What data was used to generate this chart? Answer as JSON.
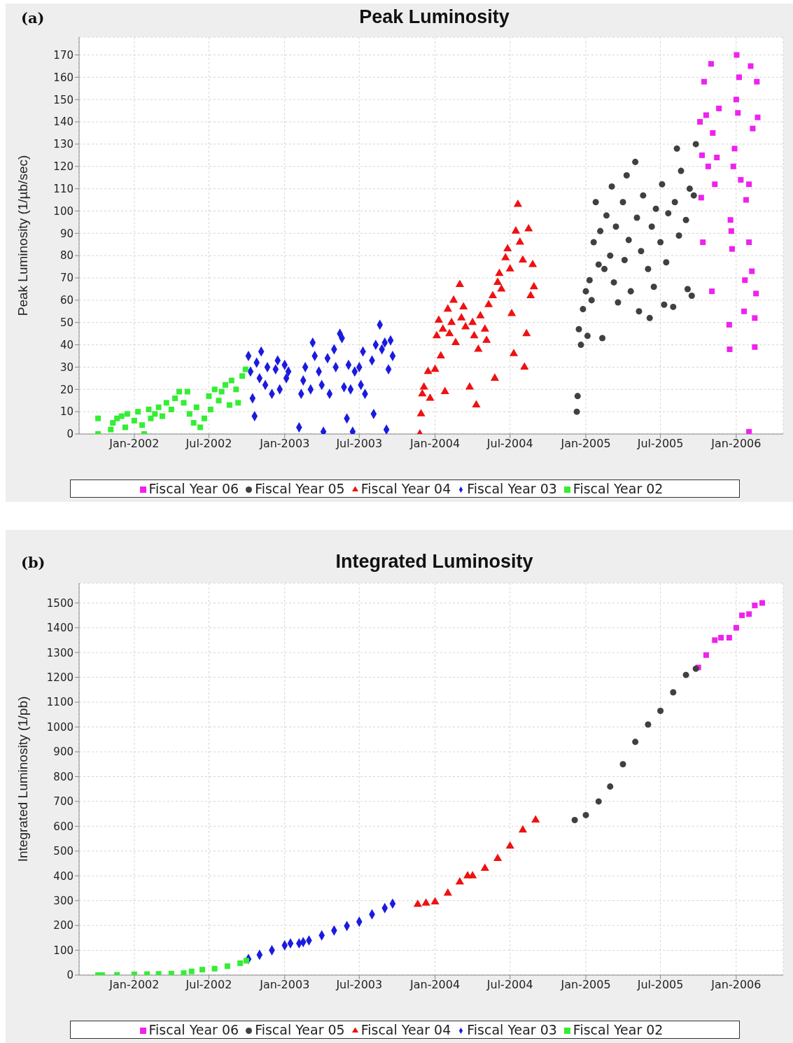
{
  "chart_data": [
    {
      "type": "scatter",
      "title": "Peak Luminosity",
      "ylabel": "Peak Luminosity (1/µb/sec)",
      "annotations": [
        "(a)"
      ],
      "xlim": [
        "2001-08-20",
        "2006-04-25"
      ],
      "ylim": [
        0,
        178
      ],
      "xticks": [
        {
          "value": "2002-01-01",
          "label": "Jan-2002"
        },
        {
          "value": "2002-07-01",
          "label": "Jul-2002"
        },
        {
          "value": "2003-01-01",
          "label": "Jan-2003"
        },
        {
          "value": "2003-07-01",
          "label": "Jul-2003"
        },
        {
          "value": "2004-01-01",
          "label": "Jan-2004"
        },
        {
          "value": "2004-07-01",
          "label": "Jul-2004"
        },
        {
          "value": "2005-01-01",
          "label": "Jan-2005"
        },
        {
          "value": "2005-07-01",
          "label": "Jul-2005"
        },
        {
          "value": "2006-01-01",
          "label": "Jan-2006"
        }
      ],
      "yticks": [
        0,
        10,
        20,
        30,
        40,
        50,
        60,
        70,
        80,
        90,
        100,
        110,
        120,
        130,
        140,
        150,
        160,
        170
      ],
      "grid": true,
      "legend": "bottom",
      "series": [
        {
          "name": "Fiscal Year 06",
          "color": "#ee22ee",
          "marker": "square",
          "x": [
            "2005-10-05",
            "2005-10-08",
            "2005-10-10",
            "2005-10-12",
            "2005-10-15",
            "2005-10-20",
            "2005-10-25",
            "2005-11-01",
            "2005-11-03",
            "2005-11-05",
            "2005-11-10",
            "2005-11-15",
            "2005-11-20",
            "2005-12-15",
            "2005-12-16",
            "2005-12-18",
            "2005-12-20",
            "2005-12-22",
            "2005-12-25",
            "2005-12-28",
            "2006-01-01",
            "2006-01-02",
            "2006-01-05",
            "2006-01-08",
            "2006-01-12",
            "2006-02-01",
            "2006-01-20",
            "2006-01-22",
            "2006-01-25",
            "2006-02-01",
            "2006-02-01",
            "2006-02-05",
            "2006-02-08",
            "2006-02-10",
            "2006-02-15",
            "2006-02-15",
            "2006-02-18",
            "2006-02-20",
            "2006-02-22"
          ],
          "values": [
            140,
            106,
            125,
            86,
            158,
            143,
            120,
            166,
            64,
            135,
            112,
            124,
            146,
            49,
            38,
            96,
            91,
            83,
            120,
            128,
            150,
            170,
            144,
            160,
            114,
            1,
            55,
            69,
            105,
            86,
            112,
            165,
            73,
            137,
            39,
            52,
            63,
            158,
            142
          ]
        },
        {
          "name": "Fiscal Year 05",
          "color": "#404040",
          "marker": "circle",
          "x": [
            "2004-12-10",
            "2004-12-12",
            "2004-12-15",
            "2004-12-20",
            "2004-12-25",
            "2005-01-01",
            "2005-01-05",
            "2005-01-10",
            "2005-01-15",
            "2005-01-20",
            "2005-01-25",
            "2005-02-01",
            "2005-02-05",
            "2005-02-10",
            "2005-02-15",
            "2005-02-20",
            "2005-03-01",
            "2005-03-05",
            "2005-03-10",
            "2005-03-15",
            "2005-03-20",
            "2005-04-01",
            "2005-04-05",
            "2005-04-10",
            "2005-04-15",
            "2005-04-20",
            "2005-05-01",
            "2005-05-05",
            "2005-05-10",
            "2005-05-15",
            "2005-05-20",
            "2005-06-01",
            "2005-06-05",
            "2005-06-10",
            "2005-06-15",
            "2005-06-20",
            "2005-07-01",
            "2005-07-05",
            "2005-07-10",
            "2005-07-15",
            "2005-07-20",
            "2005-08-01",
            "2005-08-05",
            "2005-08-10",
            "2005-08-15",
            "2005-08-20",
            "2005-09-01",
            "2005-09-05",
            "2005-09-10",
            "2005-09-15",
            "2005-09-20",
            "2005-09-25"
          ],
          "values": [
            10,
            17,
            47,
            40,
            56,
            64,
            44,
            69,
            60,
            86,
            104,
            76,
            91,
            43,
            74,
            98,
            80,
            111,
            68,
            93,
            59,
            104,
            78,
            116,
            87,
            64,
            122,
            97,
            55,
            82,
            107,
            74,
            52,
            93,
            66,
            101,
            86,
            112,
            58,
            77,
            99,
            57,
            104,
            128,
            89,
            118,
            96,
            65,
            110,
            62,
            107,
            130
          ]
        },
        {
          "name": "Fiscal Year 04",
          "color": "#ee1111",
          "marker": "triangle",
          "x": [
            "2003-11-25",
            "2003-11-28",
            "2003-12-01",
            "2003-12-05",
            "2003-12-15",
            "2003-12-20",
            "2004-01-01",
            "2004-01-05",
            "2004-01-10",
            "2004-01-15",
            "2004-01-20",
            "2004-01-25",
            "2004-02-01",
            "2004-02-05",
            "2004-02-10",
            "2004-02-15",
            "2004-02-20",
            "2004-03-01",
            "2004-03-05",
            "2004-03-10",
            "2004-03-15",
            "2004-03-25",
            "2004-04-01",
            "2004-04-05",
            "2004-04-10",
            "2004-04-15",
            "2004-04-20",
            "2004-05-01",
            "2004-05-05",
            "2004-05-10",
            "2004-05-20",
            "2004-05-25",
            "2004-06-01",
            "2004-06-05",
            "2004-06-10",
            "2004-06-20",
            "2004-06-25",
            "2004-07-01",
            "2004-07-05",
            "2004-07-10",
            "2004-07-15",
            "2004-07-20",
            "2004-07-25",
            "2004-08-01",
            "2004-08-05",
            "2004-08-10",
            "2004-08-15",
            "2004-08-20",
            "2004-08-25",
            "2004-08-28"
          ],
          "values": [
            0,
            9,
            18,
            21,
            28,
            16,
            29,
            44,
            51,
            35,
            47,
            19,
            56,
            45,
            50,
            60,
            41,
            67,
            52,
            57,
            48,
            21,
            50,
            44,
            13,
            38,
            53,
            47,
            42,
            58,
            62,
            25,
            68,
            72,
            65,
            79,
            83,
            74,
            54,
            36,
            91,
            103,
            86,
            78,
            30,
            45,
            92,
            62,
            76,
            66
          ]
        },
        {
          "name": "Fiscal Year 03",
          "color": "#1a1ae0",
          "marker": "diamond",
          "x": [
            "2002-10-05",
            "2002-10-10",
            "2002-10-15",
            "2002-10-20",
            "2002-10-25",
            "2002-11-01",
            "2002-11-05",
            "2002-11-15",
            "2002-11-20",
            "2002-12-01",
            "2002-12-10",
            "2002-12-15",
            "2002-12-20",
            "2003-01-01",
            "2003-01-05",
            "2003-01-10",
            "2003-02-05",
            "2003-02-10",
            "2003-02-15",
            "2003-02-20",
            "2003-03-05",
            "2003-03-10",
            "2003-03-15",
            "2003-03-25",
            "2003-04-01",
            "2003-04-05",
            "2003-04-15",
            "2003-04-20",
            "2003-05-01",
            "2003-05-05",
            "2003-05-15",
            "2003-05-20",
            "2003-05-25",
            "2003-06-01",
            "2003-06-05",
            "2003-06-10",
            "2003-06-15",
            "2003-06-20",
            "2003-07-01",
            "2003-07-05",
            "2003-07-10",
            "2003-07-15",
            "2003-08-01",
            "2003-08-05",
            "2003-08-10",
            "2003-08-20",
            "2003-08-25",
            "2003-09-01",
            "2003-09-05",
            "2003-09-10",
            "2003-09-15",
            "2003-09-20"
          ],
          "values": [
            35,
            28,
            16,
            8,
            32,
            25,
            37,
            22,
            30,
            18,
            29,
            33,
            20,
            31,
            25,
            28,
            3,
            18,
            24,
            30,
            20,
            41,
            35,
            28,
            22,
            1,
            34,
            18,
            38,
            30,
            45,
            43,
            21,
            7,
            31,
            20,
            1,
            28,
            30,
            22,
            37,
            18,
            33,
            9,
            40,
            49,
            38,
            41,
            2,
            29,
            42,
            35
          ]
        },
        {
          "name": "Fiscal Year 02",
          "color": "#33ee33",
          "marker": "square",
          "x": [
            "2001-10-05",
            "2001-10-05",
            "2001-11-05",
            "2001-11-10",
            "2001-11-20",
            "2001-12-01",
            "2001-12-10",
            "2001-12-15",
            "2002-01-01",
            "2002-01-10",
            "2002-01-20",
            "2002-01-25",
            "2002-02-05",
            "2002-02-10",
            "2002-02-20",
            "2002-03-01",
            "2002-03-10",
            "2002-03-20",
            "2002-04-01",
            "2002-04-10",
            "2002-04-20",
            "2002-05-01",
            "2002-05-10",
            "2002-05-15",
            "2002-05-25",
            "2002-06-01",
            "2002-06-10",
            "2002-06-20",
            "2002-07-01",
            "2002-07-05",
            "2002-07-15",
            "2002-07-25",
            "2002-08-01",
            "2002-08-10",
            "2002-08-20",
            "2002-08-25",
            "2002-09-05",
            "2002-09-10",
            "2002-09-20",
            "2002-09-28"
          ],
          "values": [
            7,
            0,
            2,
            5,
            7,
            8,
            3,
            9,
            6,
            10,
            4,
            0,
            11,
            7,
            9,
            12,
            8,
            14,
            11,
            16,
            19,
            14,
            19,
            9,
            5,
            12,
            3,
            7,
            17,
            11,
            20,
            15,
            19,
            22,
            13,
            24,
            20,
            14,
            26,
            29
          ]
        }
      ]
    },
    {
      "type": "scatter",
      "title": "Integrated Luminosity",
      "ylabel": "Integrated Luminosity (1/pb)",
      "annotations": [
        "(b)"
      ],
      "xlim": [
        "2001-08-20",
        "2006-04-25"
      ],
      "ylim": [
        0,
        1580
      ],
      "xticks": [
        {
          "value": "2002-01-01",
          "label": "Jan-2002"
        },
        {
          "value": "2002-07-01",
          "label": "Jul-2002"
        },
        {
          "value": "2003-01-01",
          "label": "Jan-2003"
        },
        {
          "value": "2003-07-01",
          "label": "Jul-2003"
        },
        {
          "value": "2004-01-01",
          "label": "Jan-2004"
        },
        {
          "value": "2004-07-01",
          "label": "Jul-2004"
        },
        {
          "value": "2005-01-01",
          "label": "Jan-2005"
        },
        {
          "value": "2005-07-01",
          "label": "Jul-2005"
        },
        {
          "value": "2006-01-01",
          "label": "Jan-2006"
        }
      ],
      "yticks": [
        0,
        100,
        200,
        300,
        400,
        500,
        600,
        700,
        800,
        900,
        1000,
        1100,
        1200,
        1300,
        1400,
        1500
      ],
      "grid": true,
      "legend": "bottom",
      "series": [
        {
          "name": "Fiscal Year 06",
          "color": "#ee22ee",
          "marker": "square",
          "x": [
            "2005-10-01",
            "2005-10-20",
            "2005-11-10",
            "2005-11-25",
            "2005-12-15",
            "2006-01-01",
            "2006-01-15",
            "2006-02-01",
            "2006-02-15",
            "2006-03-05"
          ],
          "values": [
            1240,
            1290,
            1350,
            1360,
            1360,
            1400,
            1450,
            1455,
            1490,
            1500
          ]
        },
        {
          "name": "Fiscal Year 05",
          "color": "#404040",
          "marker": "circle",
          "x": [
            "2004-12-05",
            "2005-01-01",
            "2005-02-01",
            "2005-03-01",
            "2005-04-01",
            "2005-05-01",
            "2005-06-01",
            "2005-07-01",
            "2005-08-01",
            "2005-09-01",
            "2005-09-25"
          ],
          "values": [
            625,
            645,
            700,
            760,
            850,
            940,
            1010,
            1065,
            1140,
            1210,
            1235
          ]
        },
        {
          "name": "Fiscal Year 04",
          "color": "#ee1111",
          "marker": "triangle",
          "x": [
            "2003-11-20",
            "2003-12-10",
            "2004-01-01",
            "2004-02-01",
            "2004-03-01",
            "2004-03-20",
            "2004-04-01",
            "2004-05-01",
            "2004-06-01",
            "2004-07-01",
            "2004-08-01",
            "2004-09-01"
          ],
          "values": [
            285,
            290,
            295,
            330,
            375,
            400,
            400,
            430,
            470,
            520,
            585,
            625
          ]
        },
        {
          "name": "Fiscal Year 03",
          "color": "#1a1ae0",
          "marker": "diamond",
          "x": [
            "2002-10-05",
            "2002-11-01",
            "2002-12-01",
            "2003-01-01",
            "2003-01-15",
            "2003-02-05",
            "2003-02-15",
            "2003-03-01",
            "2003-04-01",
            "2003-05-01",
            "2003-06-01",
            "2003-07-01",
            "2003-08-01",
            "2003-09-01",
            "2003-09-20"
          ],
          "values": [
            65,
            82,
            100,
            120,
            128,
            128,
            133,
            140,
            160,
            180,
            198,
            215,
            245,
            270,
            288
          ]
        },
        {
          "name": "Fiscal Year 02",
          "color": "#33ee33",
          "marker": "square",
          "x": [
            "2001-10-05",
            "2001-10-15",
            "2001-11-20",
            "2002-01-01",
            "2002-02-01",
            "2002-03-01",
            "2002-04-01",
            "2002-05-01",
            "2002-05-20",
            "2002-06-15",
            "2002-07-15",
            "2002-08-15",
            "2002-09-15",
            "2002-09-30"
          ],
          "values": [
            0,
            0,
            1,
            3,
            4,
            5,
            6,
            8,
            15,
            22,
            26,
            36,
            48,
            58
          ]
        }
      ]
    }
  ]
}
